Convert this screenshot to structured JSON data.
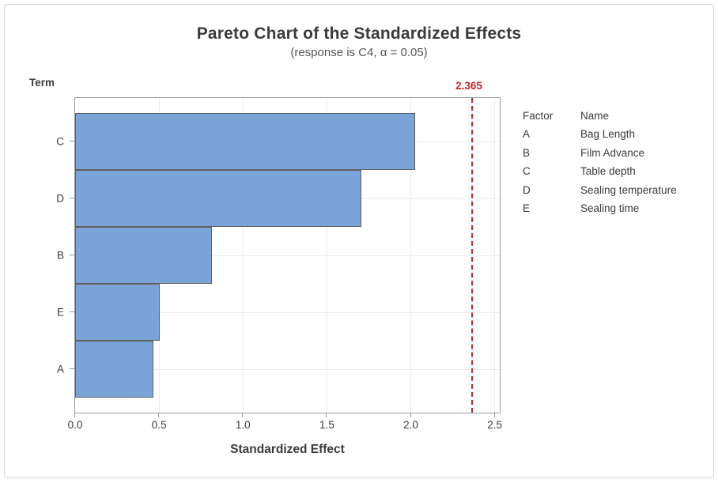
{
  "chart": {
    "term_axis_label": "Term"
  },
  "chart_data": {
    "type": "bar",
    "orientation": "horizontal",
    "title": "Pareto Chart of the Standardized Effects",
    "subtitle": "(response is C4, α = 0.05)",
    "xlabel": "Standardized Effect",
    "ylabel": "Term",
    "categories": [
      "C",
      "D",
      "B",
      "E",
      "A"
    ],
    "values": [
      2.02,
      1.7,
      0.81,
      0.5,
      0.46
    ],
    "xlim": [
      0,
      2.53
    ],
    "x_ticks": [
      "0.0",
      "0.5",
      "1.0",
      "1.5",
      "2.0",
      "2.5"
    ],
    "x_tick_values": [
      0,
      0.5,
      1.0,
      1.5,
      2.0,
      2.5
    ],
    "grid": true,
    "legend_position": "right",
    "reference_line": {
      "value": 2.365,
      "label": "2.365"
    }
  },
  "legend": {
    "header": {
      "factor": "Factor",
      "name": "Name"
    },
    "rows": [
      {
        "factor": "A",
        "name": "Bag Length"
      },
      {
        "factor": "B",
        "name": "Film Advance"
      },
      {
        "factor": "C",
        "name": "Table depth"
      },
      {
        "factor": "D",
        "name": "Sealing temperature"
      },
      {
        "factor": "E",
        "name": "Sealing time"
      }
    ]
  },
  "colors": {
    "bar_fill": "#7aa3d8",
    "bar_border": "#5f5f5f",
    "reference_red": "#cb2727",
    "frame_gray": "#9a9a9a",
    "gridline_gray": "#ececec",
    "text_dark": "#3b3b3b",
    "text_subtitle": "#565656",
    "outer_border": "#d6d6d6"
  }
}
